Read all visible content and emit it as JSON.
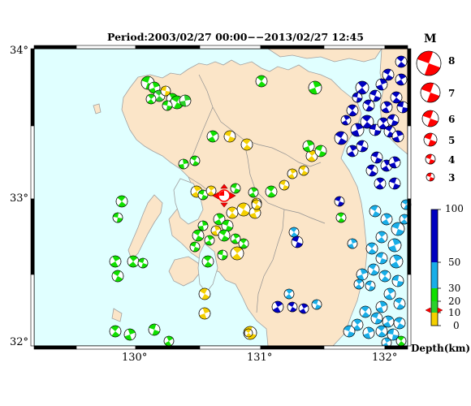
{
  "title": "Period:2003/02/27 00:00−−2013/02/27 12:45",
  "lat_labels": [
    "34°",
    "33°",
    "32°"
  ],
  "lon_labels": [
    "130°",
    "131°",
    "132°"
  ],
  "magnitude_legend": {
    "title": "M",
    "levels": [
      "8",
      "7",
      "6",
      "5",
      "4",
      "3"
    ]
  },
  "depth_legend": {
    "title": "Depth(km)",
    "ticks": [
      "100",
      "50",
      "30",
      "20",
      "10",
      "0"
    ],
    "colors": {
      "0-10": "#f5d000",
      "10-20": "#2bd12b",
      "20-30": "#10e000",
      "30-50": "#19aee8",
      "50-100": "#0000c0"
    }
  },
  "colors": {
    "sea": "#e0ffff",
    "land": "#fbe5c8",
    "coast": "#a0a0a0",
    "latest_event": "#ff0000"
  }
}
